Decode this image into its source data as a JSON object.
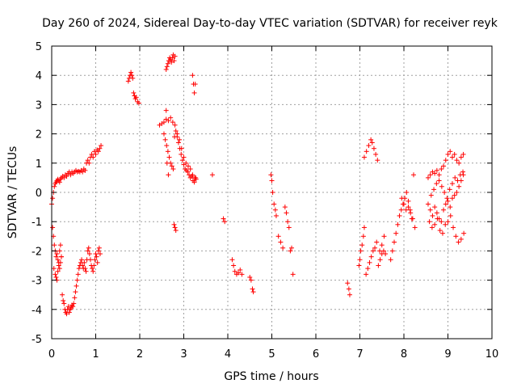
{
  "chart_data": {
    "type": "scatter",
    "title": "Day 260 of 2024, Sidereal Day-to-day VTEC variation (SDTVAR) for receiver reyk",
    "xlabel": "GPS time / hours",
    "ylabel": "SDTVAR / TECUs",
    "xlim": [
      0,
      10
    ],
    "ylim": [
      -5,
      5
    ],
    "xticks": [
      "0",
      "1",
      "2",
      "3",
      "4",
      "5",
      "6",
      "7",
      "8",
      "9",
      "10"
    ],
    "yticks": [
      "5",
      "4",
      "3",
      "2",
      "1",
      "0",
      "-1",
      "-2",
      "-3",
      "-4",
      "-5"
    ],
    "grid": true,
    "marker": "+",
    "marker_color": "#ff0000",
    "series": [
      {
        "name": "SDTVAR",
        "x": [
          0.0,
          0.02,
          0.04,
          0.06,
          0.08,
          0.1,
          0.12,
          0.14,
          0.16,
          0.18,
          0.2,
          0.22,
          0.25,
          0.28,
          0.31,
          0.34,
          0.37,
          0.4,
          0.43,
          0.46,
          0.49,
          0.52,
          0.55,
          0.58,
          0.61,
          0.64,
          0.67,
          0.7,
          0.73,
          0.76,
          0.79,
          0.82,
          0.85,
          0.88,
          0.91,
          0.94,
          0.97,
          1.0,
          1.03,
          1.06,
          1.09,
          1.12,
          0.02,
          0.04,
          0.06,
          0.08,
          0.1,
          0.12,
          0.14,
          0.16,
          0.18,
          0.2,
          0.22,
          0.05,
          0.08,
          0.1,
          0.12,
          0.14,
          0.16,
          0.18,
          0.2,
          0.22,
          0.24,
          0.26,
          0.28,
          0.3,
          0.32,
          0.34,
          0.36,
          0.38,
          0.4,
          0.42,
          0.44,
          0.46,
          0.48,
          0.5,
          0.52,
          0.54,
          0.56,
          0.58,
          0.6,
          0.62,
          0.64,
          0.66,
          0.68,
          0.7,
          0.72,
          0.74,
          0.76,
          0.78,
          0.8,
          0.82,
          0.84,
          0.86,
          0.88,
          0.9,
          0.92,
          0.94,
          0.96,
          0.98,
          1.0,
          1.02,
          1.04,
          1.06,
          1.08,
          1.1,
          1.74,
          1.76,
          1.78,
          1.8,
          1.82,
          1.84,
          1.86,
          1.88,
          1.9,
          1.92,
          1.95,
          1.98,
          2.6,
          2.62,
          2.64,
          2.66,
          2.68,
          2.7,
          2.72,
          2.74,
          2.76,
          2.78,
          2.8,
          3.2,
          3.22,
          3.24,
          3.26,
          2.45,
          2.5,
          2.55,
          2.6,
          2.65,
          2.7,
          2.75,
          2.8,
          2.85,
          2.9,
          2.95,
          3.0,
          3.05,
          3.1,
          3.15,
          3.2,
          3.25,
          3.28,
          2.55,
          2.58,
          2.61,
          2.64,
          2.67,
          2.7,
          2.73,
          2.76,
          2.79,
          2.82,
          2.85,
          2.88,
          2.91,
          2.94,
          2.97,
          3.0,
          3.03,
          3.06,
          3.09,
          3.12,
          3.15,
          3.18,
          3.21,
          3.24,
          3.27,
          2.6,
          2.65,
          2.62,
          2.78,
          2.8,
          2.82,
          3.65,
          3.9,
          3.93,
          4.1,
          4.13,
          4.16,
          4.2,
          4.24,
          4.28,
          4.32,
          4.5,
          4.53,
          4.56,
          4.58,
          4.98,
          5.0,
          5.02,
          5.05,
          5.08,
          5.1,
          5.15,
          5.2,
          5.25,
          5.3,
          5.33,
          5.36,
          5.39,
          5.42,
          5.45,
          5.48,
          6.72,
          6.75,
          6.77,
          6.98,
          7.0,
          7.02,
          7.05,
          7.08,
          7.1,
          7.14,
          7.18,
          7.22,
          7.26,
          7.3,
          7.34,
          7.38,
          7.42,
          7.46,
          7.5,
          7.54,
          7.58,
          7.1,
          7.15,
          7.2,
          7.25,
          7.28,
          7.32,
          7.36,
          7.4,
          7.45,
          7.5,
          7.55,
          7.7,
          7.74,
          7.78,
          7.82,
          7.86,
          7.9,
          7.94,
          7.98,
          8.02,
          8.06,
          8.1,
          8.14,
          8.18,
          8.22,
          7.95,
          8.0,
          8.05,
          8.1,
          8.15,
          8.2,
          8.25,
          8.55,
          8.6,
          8.65,
          8.7,
          8.75,
          8.8,
          8.85,
          8.9,
          8.95,
          9.0,
          9.05,
          9.1,
          9.15,
          9.2,
          9.25,
          9.3,
          9.35,
          8.55,
          8.6,
          8.65,
          8.7,
          8.75,
          8.8,
          8.85,
          8.9,
          8.95,
          9.0,
          9.05,
          9.1,
          9.15,
          9.2,
          9.25,
          9.3,
          9.35,
          8.58,
          8.64,
          8.7,
          8.76,
          8.82,
          8.88,
          8.94,
          9.0,
          9.06,
          9.12,
          9.18,
          9.24,
          9.3,
          9.36,
          8.62,
          8.68,
          8.74,
          8.8,
          8.86,
          8.92,
          8.98,
          9.04,
          9.1,
          9.16,
          9.22,
          9.28,
          9.34
        ],
        "y": [
          -0.4,
          -0.2,
          0.0,
          0.2,
          0.3,
          0.35,
          0.4,
          0.45,
          0.4,
          0.35,
          0.45,
          0.5,
          0.55,
          0.5,
          0.6,
          0.55,
          0.65,
          0.7,
          0.6,
          0.7,
          0.65,
          0.7,
          0.75,
          0.7,
          0.72,
          0.7,
          0.75,
          0.7,
          0.8,
          0.75,
          1.0,
          1.1,
          1.0,
          1.2,
          1.3,
          1.2,
          1.4,
          1.3,
          1.45,
          1.4,
          1.5,
          1.6,
          -1.2,
          -1.5,
          -1.8,
          -2.0,
          -2.2,
          -2.1,
          -2.3,
          -2.4,
          -2.0,
          -1.8,
          -2.2,
          -2.6,
          -2.8,
          -2.9,
          -3.0,
          -2.7,
          -2.5,
          -2.6,
          -2.4,
          -2.2,
          -3.5,
          -3.7,
          -3.8,
          -4.0,
          -4.1,
          -4.15,
          -4.0,
          -3.9,
          -4.1,
          -4.0,
          -3.95,
          -3.85,
          -3.9,
          -3.8,
          -3.6,
          -3.4,
          -3.2,
          -3.0,
          -2.8,
          -2.6,
          -2.5,
          -2.4,
          -2.3,
          -2.5,
          -2.6,
          -2.4,
          -2.6,
          -2.7,
          -2.3,
          -2.0,
          -1.9,
          -2.1,
          -2.3,
          -2.5,
          -2.6,
          -2.7,
          -2.5,
          -2.3,
          -2.1,
          -2.2,
          -2.4,
          -2.0,
          -1.9,
          -2.1,
          3.8,
          3.9,
          4.0,
          4.1,
          4.0,
          3.9,
          3.4,
          3.3,
          3.2,
          3.25,
          3.1,
          3.05,
          4.2,
          4.3,
          4.4,
          4.5,
          4.6,
          4.55,
          4.45,
          4.6,
          4.7,
          4.5,
          4.65,
          4.0,
          3.7,
          3.4,
          3.7,
          2.3,
          2.35,
          2.4,
          2.5,
          2.45,
          2.55,
          2.4,
          2.3,
          2.0,
          1.8,
          1.5,
          1.2,
          1.0,
          0.9,
          0.8,
          0.6,
          0.5,
          0.45,
          2.0,
          1.8,
          1.6,
          1.4,
          1.2,
          1.0,
          0.9,
          0.8,
          1.9,
          2.1,
          1.9,
          1.7,
          1.5,
          1.3,
          1.1,
          0.95,
          0.8,
          0.75,
          0.7,
          0.6,
          0.5,
          0.55,
          0.4,
          0.35,
          0.5,
          2.8,
          0.6,
          1.0,
          -1.1,
          -1.2,
          -1.3,
          0.6,
          -0.9,
          -1.0,
          -2.3,
          -2.5,
          -2.7,
          -2.8,
          -2.75,
          -2.65,
          -2.8,
          -2.9,
          -3.0,
          -3.3,
          -3.4,
          0.6,
          0.4,
          0.0,
          -0.4,
          -0.6,
          -0.8,
          -1.5,
          -1.7,
          -1.9,
          -0.5,
          -0.7,
          -1.0,
          -1.2,
          -2.0,
          -1.9,
          -2.8,
          -3.1,
          -3.3,
          -3.5,
          -2.5,
          -2.3,
          -2.0,
          -1.8,
          -1.5,
          -1.2,
          -2.8,
          -2.6,
          -2.4,
          -2.2,
          -2.0,
          -1.9,
          -1.7,
          -2.5,
          -2.3,
          -2.1,
          -2.0,
          -2.1,
          1.2,
          1.4,
          1.6,
          1.8,
          1.7,
          1.5,
          1.3,
          1.1,
          -2.0,
          -1.8,
          -1.5,
          -2.3,
          -2.0,
          -1.7,
          -1.4,
          -1.1,
          -0.8,
          -0.6,
          -0.4,
          -0.2,
          0.0,
          -0.3,
          -0.6,
          -0.9,
          0.6,
          -0.2,
          -0.4,
          -0.6,
          -0.5,
          -0.7,
          -0.9,
          -1.2,
          0.5,
          0.6,
          0.7,
          0.65,
          0.75,
          0.6,
          0.8,
          0.9,
          1.1,
          1.3,
          1.4,
          1.2,
          1.3,
          1.1,
          1.0,
          1.2,
          1.3,
          -0.4,
          -0.6,
          -0.8,
          -0.5,
          -0.7,
          -0.9,
          -1.0,
          -0.6,
          -0.4,
          -0.3,
          -0.5,
          -0.2,
          -0.1,
          0.0,
          0.2,
          0.4,
          0.6,
          -1.0,
          -1.2,
          -1.1,
          -0.9,
          -1.3,
          -1.4,
          -1.1,
          -1.0,
          -0.8,
          -1.2,
          -1.5,
          -1.7,
          -1.6,
          -1.4,
          -0.1,
          0.1,
          0.3,
          0.4,
          0.2,
          0.0,
          -0.2,
          0.1,
          0.3,
          0.5,
          0.4,
          0.6,
          0.7
        ]
      }
    ]
  }
}
